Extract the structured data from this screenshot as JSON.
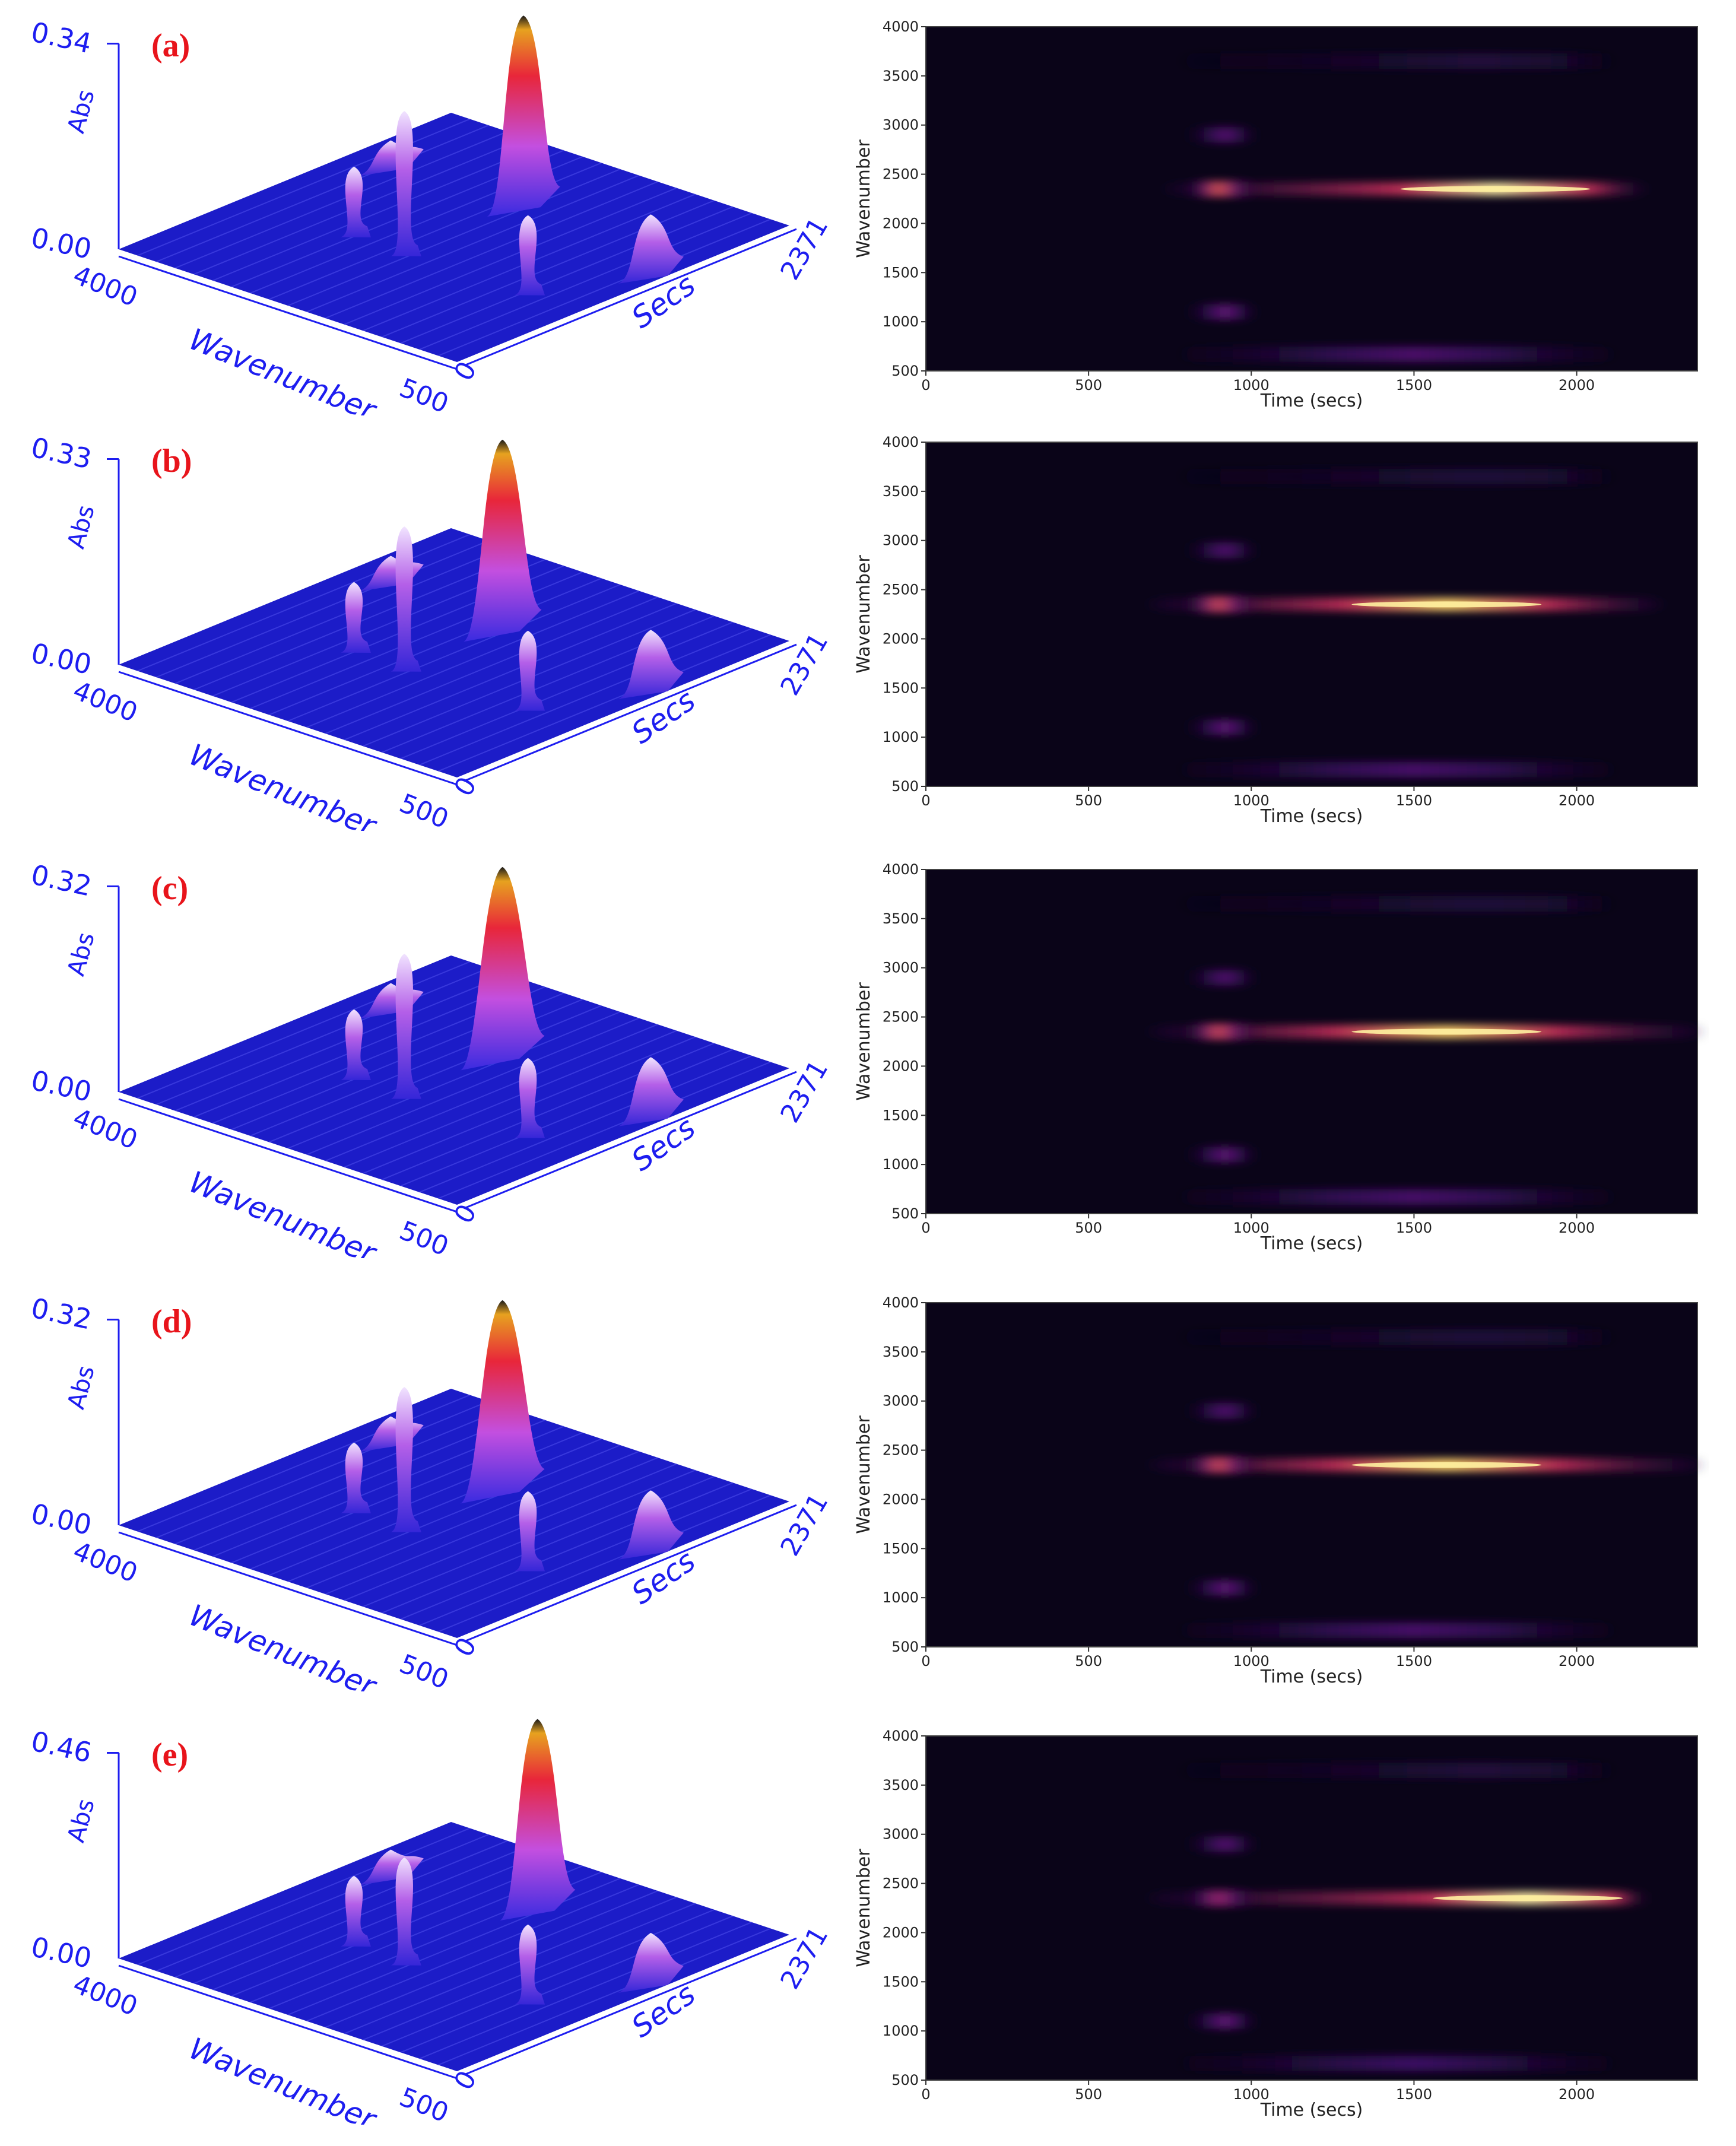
{
  "figure": {
    "panels": [
      {
        "letter": "(a)",
        "abs_max": "0.34",
        "heat_scale": 1.0
      },
      {
        "letter": "(b)",
        "abs_max": "0.33",
        "heat_scale": 0.95
      },
      {
        "letter": "(c)",
        "abs_max": "0.32",
        "heat_scale": 0.95
      },
      {
        "letter": "(d)",
        "abs_max": "0.32",
        "heat_scale": 0.95
      },
      {
        "letter": "(e)",
        "abs_max": "0.46",
        "heat_scale": 1.0
      }
    ],
    "surface_labels": {
      "abs_label": "Abs",
      "abs_min": "0.00",
      "wavenumber_label": "Wavenumber",
      "wavenumber_start": "4000",
      "wavenumber_end": "500",
      "secs_label": "Secs",
      "secs_start": "0",
      "secs_end": "2371"
    },
    "heatmap_labels": {
      "xlabel": "Time (secs)",
      "ylabel": "Wavenumber",
      "xticks": [
        "0",
        "500",
        "1000",
        "1500",
        "2000"
      ],
      "yticks": [
        "500",
        "1000",
        "1500",
        "2000",
        "2500",
        "3000",
        "3500",
        "4000"
      ]
    },
    "colors": {
      "surface_base": "#1c1cc8",
      "surface_peak": "#e8263a",
      "panel_letter": "#e8141b",
      "axis_3d": "#1d1df0",
      "heat_background": "#0a0418"
    }
  },
  "chart_data": [
    {
      "type": "heatmap",
      "panel": "(a)",
      "title": "",
      "xlabel": "Time (secs)",
      "ylabel": "Wavenumber",
      "xlim": [
        0,
        2371
      ],
      "ylim": [
        500,
        4000
      ],
      "bands": [
        {
          "wavenumber": 2350,
          "time_start": 750,
          "time_end": 2200,
          "peak_time": 1750,
          "intensity": 1.0
        },
        {
          "wavenumber": 2350,
          "time_start": 820,
          "time_end": 1000,
          "peak_time": 900,
          "intensity": 0.75
        },
        {
          "wavenumber": 2900,
          "time_start": 820,
          "time_end": 1000,
          "peak_time": 920,
          "intensity": 0.35
        },
        {
          "wavenumber": 1100,
          "time_start": 820,
          "time_end": 1000,
          "peak_time": 920,
          "intensity": 0.4
        },
        {
          "wavenumber": 670,
          "time_start": 800,
          "time_end": 2100,
          "peak_time": 1500,
          "intensity": 0.3
        },
        {
          "wavenumber": 3650,
          "time_start": 800,
          "time_end": 2100,
          "peak_time": 1700,
          "intensity": 0.12
        }
      ]
    },
    {
      "type": "heatmap",
      "panel": "(b)",
      "title": "",
      "xlabel": "Time (secs)",
      "ylabel": "Wavenumber",
      "xlim": [
        0,
        2371
      ],
      "ylim": [
        500,
        4000
      ],
      "bands": [
        {
          "wavenumber": 2350,
          "time_start": 700,
          "time_end": 2250,
          "peak_time": 1600,
          "intensity": 1.0
        },
        {
          "wavenumber": 2350,
          "time_start": 820,
          "time_end": 1000,
          "peak_time": 900,
          "intensity": 0.75
        },
        {
          "wavenumber": 2900,
          "time_start": 820,
          "time_end": 1000,
          "peak_time": 920,
          "intensity": 0.35
        },
        {
          "wavenumber": 1100,
          "time_start": 820,
          "time_end": 1000,
          "peak_time": 920,
          "intensity": 0.4
        },
        {
          "wavenumber": 670,
          "time_start": 800,
          "time_end": 2100,
          "peak_time": 1500,
          "intensity": 0.3
        },
        {
          "wavenumber": 3650,
          "time_start": 800,
          "time_end": 2100,
          "peak_time": 1700,
          "intensity": 0.12
        }
      ]
    },
    {
      "type": "heatmap",
      "panel": "(c)",
      "title": "",
      "xlabel": "Time (secs)",
      "ylabel": "Wavenumber",
      "xlim": [
        0,
        2371
      ],
      "ylim": [
        500,
        4000
      ],
      "bands": [
        {
          "wavenumber": 2350,
          "time_start": 700,
          "time_end": 2371,
          "peak_time": 1600,
          "intensity": 1.0
        },
        {
          "wavenumber": 2350,
          "time_start": 820,
          "time_end": 1000,
          "peak_time": 900,
          "intensity": 0.75
        },
        {
          "wavenumber": 2900,
          "time_start": 820,
          "time_end": 1000,
          "peak_time": 920,
          "intensity": 0.35
        },
        {
          "wavenumber": 1100,
          "time_start": 820,
          "time_end": 1000,
          "peak_time": 920,
          "intensity": 0.4
        },
        {
          "wavenumber": 670,
          "time_start": 800,
          "time_end": 2100,
          "peak_time": 1500,
          "intensity": 0.3
        },
        {
          "wavenumber": 3650,
          "time_start": 800,
          "time_end": 2100,
          "peak_time": 1700,
          "intensity": 0.12
        }
      ]
    },
    {
      "type": "heatmap",
      "panel": "(d)",
      "title": "",
      "xlabel": "Time (secs)",
      "ylabel": "Wavenumber",
      "xlim": [
        0,
        2371
      ],
      "ylim": [
        500,
        4000
      ],
      "bands": [
        {
          "wavenumber": 2350,
          "time_start": 700,
          "time_end": 2371,
          "peak_time": 1600,
          "intensity": 1.0
        },
        {
          "wavenumber": 2350,
          "time_start": 820,
          "time_end": 1000,
          "peak_time": 900,
          "intensity": 0.75
        },
        {
          "wavenumber": 2900,
          "time_start": 820,
          "time_end": 1000,
          "peak_time": 920,
          "intensity": 0.35
        },
        {
          "wavenumber": 1100,
          "time_start": 820,
          "time_end": 1000,
          "peak_time": 920,
          "intensity": 0.4
        },
        {
          "wavenumber": 670,
          "time_start": 800,
          "time_end": 2100,
          "peak_time": 1500,
          "intensity": 0.3
        },
        {
          "wavenumber": 3650,
          "time_start": 800,
          "time_end": 2100,
          "peak_time": 1700,
          "intensity": 0.12
        }
      ]
    },
    {
      "type": "heatmap",
      "panel": "(e)",
      "title": "",
      "xlabel": "Time (secs)",
      "ylabel": "Wavenumber",
      "xlim": [
        0,
        2371
      ],
      "ylim": [
        500,
        4000
      ],
      "bands": [
        {
          "wavenumber": 2350,
          "time_start": 700,
          "time_end": 2200,
          "peak_time": 1850,
          "intensity": 1.0
        },
        {
          "wavenumber": 2350,
          "time_start": 820,
          "time_end": 1000,
          "peak_time": 900,
          "intensity": 0.55
        },
        {
          "wavenumber": 2900,
          "time_start": 820,
          "time_end": 1000,
          "peak_time": 920,
          "intensity": 0.35
        },
        {
          "wavenumber": 1100,
          "time_start": 820,
          "time_end": 1000,
          "peak_time": 920,
          "intensity": 0.4
        },
        {
          "wavenumber": 670,
          "time_start": 800,
          "time_end": 2100,
          "peak_time": 1500,
          "intensity": 0.25
        },
        {
          "wavenumber": 3650,
          "time_start": 800,
          "time_end": 2100,
          "peak_time": 1700,
          "intensity": 0.12
        }
      ]
    }
  ]
}
